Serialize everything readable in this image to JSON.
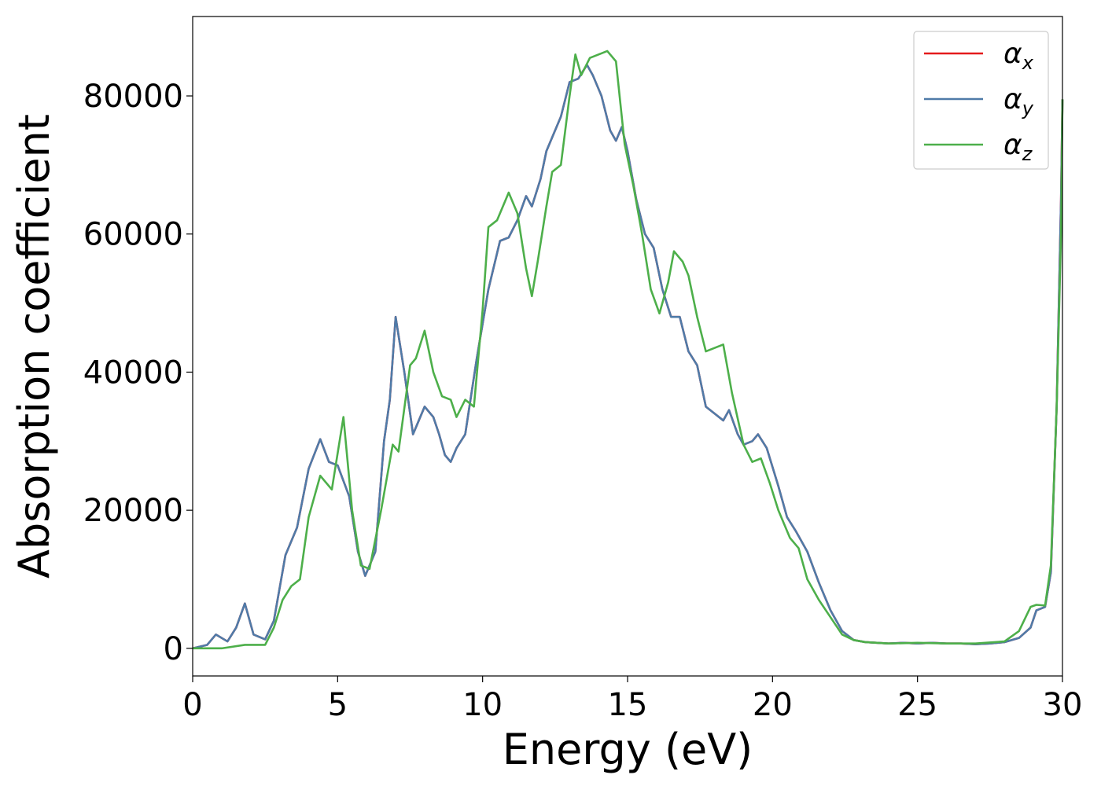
{
  "chart_data": {
    "type": "line",
    "title": "",
    "xlabel": "Energy (eV)",
    "ylabel": "Absorption coefficient",
    "xlim": [
      0,
      30
    ],
    "ylim": [
      -4000,
      91500
    ],
    "xticks": [
      0,
      5,
      10,
      15,
      20,
      25,
      30
    ],
    "yticks": [
      0,
      20000,
      40000,
      60000,
      80000
    ],
    "xtick_labels": [
      "0",
      "5",
      "10",
      "15",
      "20",
      "25",
      "30"
    ],
    "ytick_labels": [
      "0",
      "20000",
      "40000",
      "60000",
      "80000"
    ],
    "grid": false,
    "legend_position": "top-right",
    "series": [
      {
        "name": "αx",
        "symbol": "α",
        "subscript": "x",
        "color": "#e41a1c",
        "x": [
          0,
          0.5,
          0.8,
          1.2,
          1.5,
          1.8,
          2.1,
          2.5,
          2.8,
          3.2,
          3.6,
          4.0,
          4.4,
          4.7,
          5.0,
          5.4,
          5.7,
          5.95,
          6.3,
          6.6,
          6.8,
          7.0,
          7.3,
          7.6,
          7.8,
          8.0,
          8.3,
          8.5,
          8.7,
          8.9,
          9.1,
          9.4,
          9.8,
          10.2,
          10.6,
          10.9,
          11.2,
          11.5,
          11.7,
          12.0,
          12.2,
          12.4,
          12.7,
          13.0,
          13.3,
          13.6,
          13.8,
          14.1,
          14.4,
          14.6,
          14.8,
          15.0,
          15.3,
          15.6,
          15.9,
          16.2,
          16.5,
          16.8,
          17.1,
          17.4,
          17.7,
          18.0,
          18.3,
          18.5,
          18.8,
          19.0,
          19.3,
          19.5,
          19.8,
          20.2,
          20.5,
          20.8,
          21.2,
          21.6,
          22.0,
          22.4,
          22.8,
          23.2,
          23.6,
          24.0,
          24.5,
          25.0,
          25.5,
          26.0,
          26.5,
          27.0,
          27.5,
          28.0,
          28.5,
          28.9,
          29.1,
          29.4,
          29.6,
          29.8,
          29.95,
          30.0
        ],
        "y": [
          0,
          500,
          2000,
          1000,
          3000,
          6500,
          2000,
          1300,
          4000,
          13500,
          17500,
          26000,
          30300,
          27000,
          26500,
          22000,
          14000,
          10500,
          14000,
          30000,
          36000,
          48000,
          40000,
          31000,
          33000,
          35000,
          33500,
          31000,
          28000,
          27000,
          29000,
          31000,
          42000,
          52000,
          59000,
          59500,
          62000,
          65500,
          64000,
          68000,
          72000,
          74000,
          77000,
          82000,
          82500,
          84500,
          83000,
          80000,
          75000,
          73500,
          75500,
          72000,
          65000,
          60000,
          58000,
          52000,
          48000,
          48000,
          43000,
          41000,
          35000,
          34000,
          33000,
          34500,
          31000,
          29500,
          30000,
          31000,
          29000,
          23500,
          19000,
          17000,
          14000,
          9500,
          5500,
          2500,
          1200,
          900,
          800,
          700,
          800,
          700,
          800,
          700,
          700,
          600,
          700,
          900,
          1500,
          3000,
          5500,
          6000,
          11000,
          35000,
          65000,
          79500
        ]
      },
      {
        "name": "αy",
        "symbol": "α",
        "subscript": "y",
        "color": "#4f7ba8",
        "x": [
          0,
          0.5,
          0.8,
          1.2,
          1.5,
          1.8,
          2.1,
          2.5,
          2.8,
          3.2,
          3.6,
          4.0,
          4.4,
          4.7,
          5.0,
          5.4,
          5.7,
          5.95,
          6.3,
          6.6,
          6.8,
          7.0,
          7.3,
          7.6,
          7.8,
          8.0,
          8.3,
          8.5,
          8.7,
          8.9,
          9.1,
          9.4,
          9.8,
          10.2,
          10.6,
          10.9,
          11.2,
          11.5,
          11.7,
          12.0,
          12.2,
          12.4,
          12.7,
          13.0,
          13.3,
          13.6,
          13.8,
          14.1,
          14.4,
          14.6,
          14.8,
          15.0,
          15.3,
          15.6,
          15.9,
          16.2,
          16.5,
          16.8,
          17.1,
          17.4,
          17.7,
          18.0,
          18.3,
          18.5,
          18.8,
          19.0,
          19.3,
          19.5,
          19.8,
          20.2,
          20.5,
          20.8,
          21.2,
          21.6,
          22.0,
          22.4,
          22.8,
          23.2,
          23.6,
          24.0,
          24.5,
          25.0,
          25.5,
          26.0,
          26.5,
          27.0,
          27.5,
          28.0,
          28.5,
          28.9,
          29.1,
          29.4,
          29.6,
          29.8,
          29.95,
          30.0
        ],
        "y": [
          0,
          500,
          2000,
          1000,
          3000,
          6500,
          2000,
          1300,
          4000,
          13500,
          17500,
          26000,
          30300,
          27000,
          26500,
          22000,
          14000,
          10500,
          14000,
          30000,
          36000,
          48000,
          40000,
          31000,
          33000,
          35000,
          33500,
          31000,
          28000,
          27000,
          29000,
          31000,
          42000,
          52000,
          59000,
          59500,
          62000,
          65500,
          64000,
          68000,
          72000,
          74000,
          77000,
          82000,
          82500,
          84500,
          83000,
          80000,
          75000,
          73500,
          75500,
          72000,
          65000,
          60000,
          58000,
          52000,
          48000,
          48000,
          43000,
          41000,
          35000,
          34000,
          33000,
          34500,
          31000,
          29500,
          30000,
          31000,
          29000,
          23500,
          19000,
          17000,
          14000,
          9500,
          5500,
          2500,
          1200,
          900,
          800,
          700,
          800,
          700,
          800,
          700,
          700,
          600,
          700,
          900,
          1500,
          3000,
          5500,
          6000,
          11000,
          35000,
          65000,
          79500
        ]
      },
      {
        "name": "αz",
        "symbol": "α",
        "subscript": "z",
        "color": "#4daf4a",
        "x": [
          0,
          1.0,
          1.8,
          2.5,
          2.8,
          3.1,
          3.4,
          3.7,
          4.0,
          4.4,
          4.8,
          5.2,
          5.5,
          5.8,
          6.1,
          6.5,
          6.9,
          7.1,
          7.5,
          7.7,
          8.0,
          8.3,
          8.6,
          8.9,
          9.1,
          9.4,
          9.7,
          10.0,
          10.2,
          10.5,
          10.9,
          11.2,
          11.5,
          11.7,
          11.9,
          12.2,
          12.4,
          12.7,
          13.0,
          13.2,
          13.4,
          13.7,
          14.0,
          14.3,
          14.6,
          14.9,
          15.2,
          15.5,
          15.8,
          16.1,
          16.4,
          16.6,
          16.9,
          17.1,
          17.4,
          17.7,
          18.0,
          18.3,
          18.6,
          19.0,
          19.3,
          19.6,
          19.9,
          20.2,
          20.6,
          20.9,
          21.2,
          21.6,
          22.0,
          22.4,
          22.8,
          23.2,
          23.6,
          24.0,
          25.0,
          26.0,
          27.0,
          28.0,
          28.5,
          28.9,
          29.1,
          29.4,
          29.6,
          29.8,
          29.95,
          30.0
        ],
        "y": [
          0,
          0,
          500,
          500,
          3000,
          7000,
          9000,
          10000,
          19000,
          25000,
          23000,
          33500,
          20000,
          12000,
          11500,
          20000,
          29500,
          28500,
          41000,
          42000,
          46000,
          40000,
          36500,
          36000,
          33500,
          36000,
          35000,
          49000,
          61000,
          62000,
          66000,
          63000,
          55000,
          51000,
          56000,
          64000,
          69000,
          70000,
          80000,
          86000,
          83000,
          85500,
          86000,
          86500,
          85000,
          73000,
          67000,
          60000,
          52000,
          48500,
          53000,
          57500,
          56000,
          54000,
          48000,
          43000,
          43500,
          44000,
          37000,
          29500,
          27000,
          27500,
          24000,
          20000,
          16000,
          14500,
          10000,
          7000,
          4500,
          2000,
          1200,
          900,
          800,
          700,
          800,
          700,
          700,
          1000,
          2500,
          6000,
          6300,
          6200,
          12000,
          35000,
          60000,
          79500
        ]
      }
    ]
  }
}
